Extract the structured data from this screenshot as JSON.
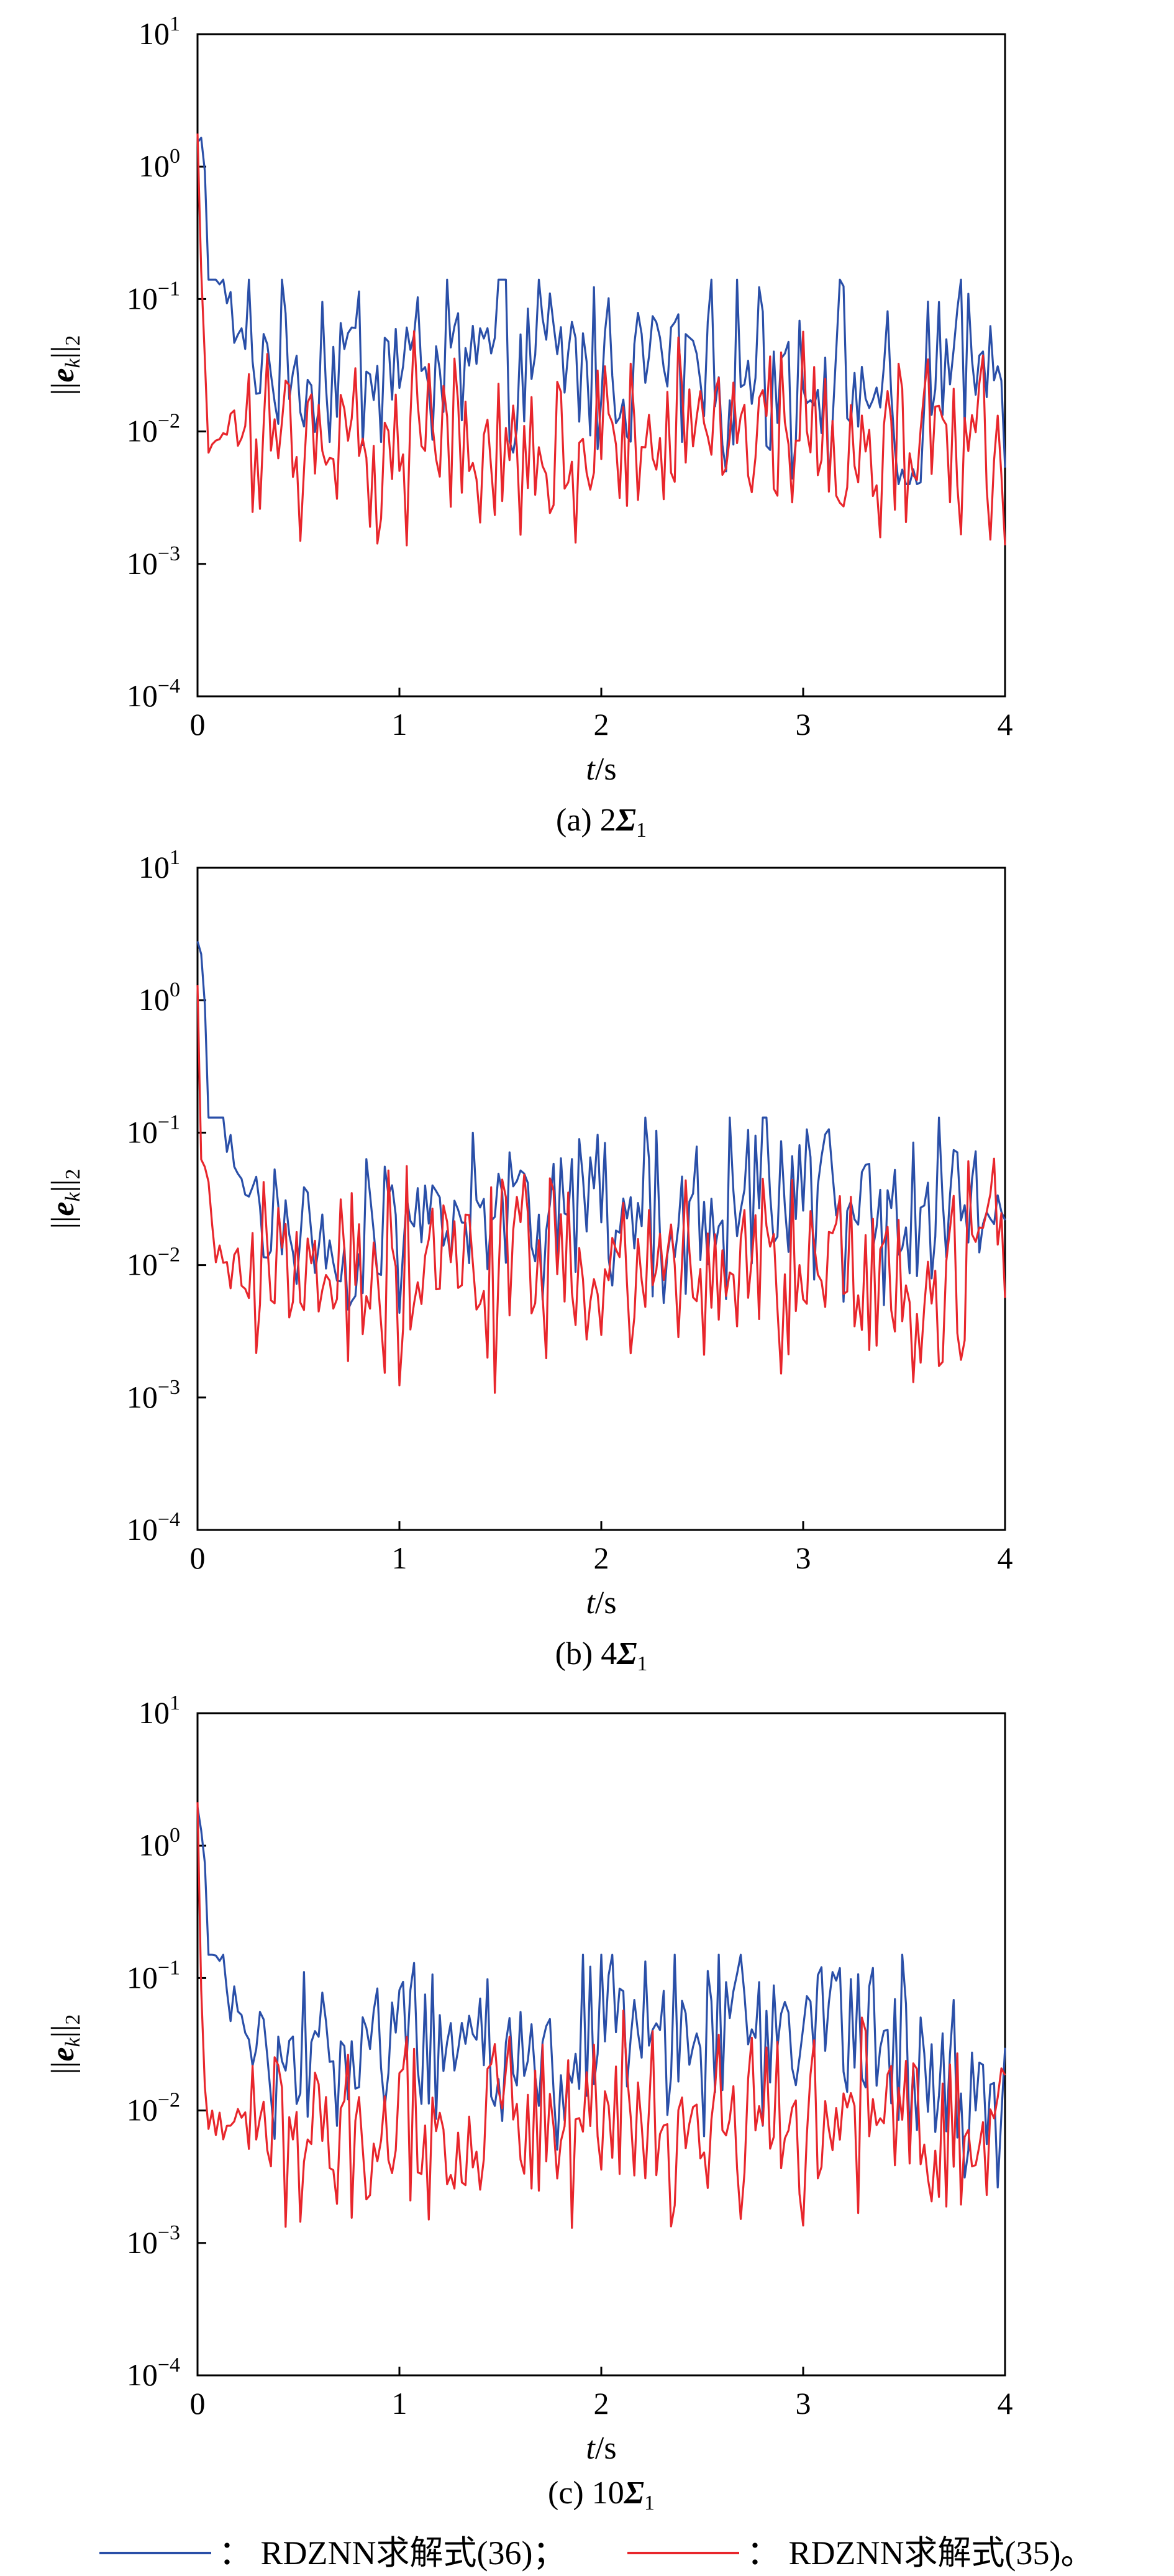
{
  "figure": {
    "panels": [
      {
        "caption_prefix": "(a) 2",
        "caption_symbol": "Σ",
        "caption_sub": "1"
      },
      {
        "caption_prefix": "(b) 4",
        "caption_symbol": "Σ",
        "caption_sub": "1"
      },
      {
        "caption_prefix": "(c) 10",
        "caption_symbol": "Σ",
        "caption_sub": "1"
      }
    ],
    "ylabel": {
      "bars_left": "||",
      "symbol": "e",
      "sub": "k",
      "bars_right": "||",
      "norm": "2"
    },
    "xlabel": {
      "var": "t",
      "unit": "/s"
    },
    "ytick_base": "10",
    "ytick_exponents": [
      "1",
      "0",
      "−1",
      "−2",
      "−3",
      "−4"
    ],
    "xtick_labels": [
      "0",
      "1",
      "2",
      "3",
      "4"
    ],
    "legend": [
      {
        "label": "： RDZNN求解式(36)；",
        "color": "#2a4fa8"
      },
      {
        "label": "： RDZNN求解式(35)。",
        "color": "#e8262c"
      }
    ]
  },
  "chart_data": [
    {
      "type": "line",
      "title": "(a) 2Σ1",
      "xlabel": "t/s",
      "ylabel": "||e_k||_2",
      "xlim": [
        0,
        4
      ],
      "ylim": [
        0.0001,
        10
      ],
      "yscale": "log",
      "grid": false,
      "series": [
        {
          "name": "RDZNN求解式(36)",
          "color": "#2a4fa8",
          "x": [
            0,
            0.02,
            0.05,
            0.08,
            0.1,
            0.12,
            0.15,
            0.2,
            0.3,
            0.4,
            0.5,
            0.6,
            0.8,
            1.0,
            1.2,
            1.5,
            1.8,
            2.0,
            2.3,
            2.5,
            2.8,
            3.0,
            3.2,
            3.4,
            3.52,
            3.6,
            3.8,
            4.0
          ],
          "y": [
            1.5,
            1.5,
            0.5,
            0.3,
            0.2,
            0.15,
            0.09,
            0.05,
            0.04,
            0.035,
            0.03,
            0.03,
            0.035,
            0.03,
            0.035,
            0.03,
            0.035,
            0.03,
            0.035,
            0.03,
            0.03,
            0.03,
            0.025,
            0.02,
            0.001,
            0.02,
            0.03,
            0.03
          ],
          "noise": {
            "min": 0.004,
            "max": 0.14,
            "pts": 220
          }
        },
        {
          "name": "RDZNN求解式(35)",
          "color": "#e8262c",
          "x": [
            0,
            0.01,
            0.03,
            0.05,
            0.1,
            0.5,
            1.0,
            1.5,
            2.0,
            2.5,
            3.0,
            3.5,
            4.0
          ],
          "y": [
            1.5,
            0.5,
            0.05,
            0.01,
            0.01,
            0.008,
            0.008,
            0.008,
            0.008,
            0.008,
            0.008,
            0.008,
            0.01
          ],
          "noise": {
            "min": 0.0013,
            "max": 0.1,
            "pts": 220
          }
        }
      ]
    },
    {
      "type": "line",
      "title": "(b) 4Σ1",
      "xlabel": "t/s",
      "ylabel": "||e_k||_2",
      "xlim": [
        0,
        4
      ],
      "ylim": [
        0.0001,
        10
      ],
      "yscale": "log",
      "grid": false,
      "series": [
        {
          "name": "RDZNN求解式(36)",
          "color": "#2a4fa8",
          "x": [
            0,
            0.02,
            0.05,
            0.08,
            0.1,
            0.15,
            0.2,
            0.3,
            0.4,
            0.5,
            0.6,
            0.8,
            1.0,
            1.5,
            2.0,
            2.5,
            3.0,
            3.5,
            4.0
          ],
          "y": [
            2.5,
            2.0,
            0.6,
            0.3,
            0.15,
            0.08,
            0.05,
            0.03,
            0.02,
            0.01,
            0.008,
            0.015,
            0.025,
            0.03,
            0.03,
            0.03,
            0.03,
            0.03,
            0.03
          ],
          "noise": {
            "min": 0.0017,
            "max": 0.13,
            "pts": 220
          }
        },
        {
          "name": "RDZNN求解式(35)",
          "color": "#e8262c",
          "x": [
            0,
            0.01,
            0.03,
            0.05,
            0.1,
            0.5,
            1.0,
            1.5,
            2.0,
            2.5,
            3.0,
            3.5,
            4.0
          ],
          "y": [
            1.0,
            0.1,
            0.05,
            0.04,
            0.01,
            0.008,
            0.008,
            0.008,
            0.008,
            0.008,
            0.008,
            0.008,
            0.01
          ],
          "noise": {
            "min": 0.001,
            "max": 0.12,
            "pts": 220
          }
        }
      ]
    },
    {
      "type": "line",
      "title": "(c) 10Σ1",
      "xlabel": "t/s",
      "ylabel": "||e_k||_2",
      "xlim": [
        0,
        4
      ],
      "ylim": [
        0.0001,
        10
      ],
      "yscale": "log",
      "grid": false,
      "series": [
        {
          "name": "RDZNN求解式(36)",
          "color": "#2a4fa8",
          "x": [
            0,
            0.02,
            0.05,
            0.08,
            0.1,
            0.15,
            0.2,
            0.3,
            0.5,
            0.7,
            1.0,
            1.5,
            2.0,
            2.5,
            3.0,
            3.2,
            3.5,
            4.0
          ],
          "y": [
            1.6,
            1.5,
            0.5,
            0.25,
            0.15,
            0.08,
            0.05,
            0.03,
            0.03,
            0.03,
            0.03,
            0.03,
            0.04,
            0.035,
            0.04,
            0.05,
            0.03,
            0.01
          ],
          "noise": {
            "min": 0.0018,
            "max": 0.15,
            "pts": 220
          }
        },
        {
          "name": "RDZNN求解式(35)",
          "color": "#e8262c",
          "x": [
            0,
            0.01,
            0.03,
            0.05,
            0.1,
            0.5,
            1.0,
            1.5,
            2.0,
            2.5,
            3.0,
            3.5,
            4.0
          ],
          "y": [
            1.5,
            0.3,
            0.02,
            0.01,
            0.008,
            0.008,
            0.008,
            0.008,
            0.008,
            0.008,
            0.008,
            0.008,
            0.008
          ],
          "noise": {
            "min": 0.0007,
            "max": 0.1,
            "pts": 220
          }
        }
      ]
    }
  ]
}
